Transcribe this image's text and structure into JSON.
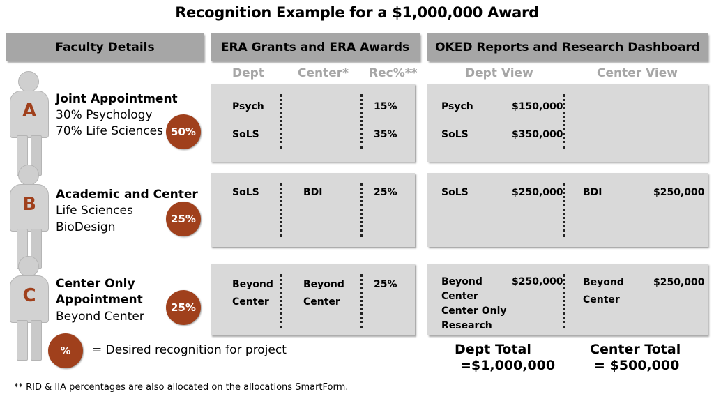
{
  "title": "Recognition Example for a $1,000,000 Award",
  "headers": {
    "faculty": "Faculty Details",
    "era": "ERA Grants and ERA Awards",
    "oked": "OKED Reports and Research Dashboard"
  },
  "subheaders": {
    "dept": "Dept",
    "center": "Center*",
    "rec": "Rec%**",
    "dept_view": "Dept View",
    "center_view": "Center View"
  },
  "faculty": [
    {
      "letter": "A",
      "title_lines": [
        "Joint Appointment"
      ],
      "lines": [
        "30% Psychology",
        "70% Life Sciences"
      ],
      "badge": "50%",
      "era": {
        "dept": [
          "Psych",
          "SoLS"
        ],
        "center": [],
        "rec": [
          "15%",
          "35%"
        ]
      },
      "oked": {
        "dept_names": [
          "Psych",
          "SoLS"
        ],
        "dept_amounts": [
          "$150,000",
          "$350,000"
        ],
        "center_names": [],
        "center_amounts": []
      }
    },
    {
      "letter": "B",
      "title_lines": [
        "Academic and Center"
      ],
      "lines": [
        "Life Sciences",
        "BioDesign"
      ],
      "badge": "25%",
      "era": {
        "dept": [
          "SoLS"
        ],
        "center": [
          "BDI"
        ],
        "rec": [
          "25%"
        ]
      },
      "oked": {
        "dept_names": [
          "SoLS"
        ],
        "dept_amounts": [
          "$250,000"
        ],
        "center_names": [
          "BDI"
        ],
        "center_amounts": [
          "$250,000"
        ]
      }
    },
    {
      "letter": "C",
      "title_lines": [
        "Center Only",
        "Appointment"
      ],
      "lines": [
        "Beyond Center"
      ],
      "badge": "25%",
      "era": {
        "dept": [
          "Beyond",
          "Center"
        ],
        "center": [
          "Beyond",
          "Center"
        ],
        "rec": [
          "25%"
        ]
      },
      "oked": {
        "dept_names": [
          "Beyond",
          "Center",
          "Center Only",
          "Research"
        ],
        "dept_amounts": [
          "$250,000"
        ],
        "center_names": [
          "Beyond",
          "Center"
        ],
        "center_amounts": [
          "$250,000"
        ]
      }
    }
  ],
  "legend": {
    "symbol": "%",
    "text": "= Desired recognition for project"
  },
  "totals": {
    "dept_label": "Dept Total",
    "dept_value": "=$1,000,000",
    "center_label": "Center Total",
    "center_value": "= $500,000"
  },
  "footnote": "** RID & IIA percentages are also allocated on the allocations SmartForm.",
  "colors": {
    "header_gray": "#a6a6a6",
    "panel_gray": "#d9d9d9",
    "badge": "#a0401c",
    "letter": "#a0401c"
  }
}
